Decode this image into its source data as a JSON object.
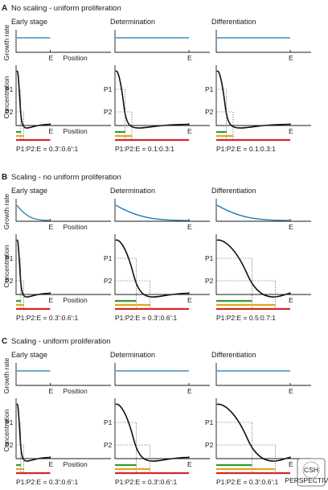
{
  "panels": [
    {
      "letter": "A",
      "title": "No scaling - uniform proliferation",
      "stages": [
        {
          "name": "Early stage",
          "growth": "flat",
          "growth_labels": [
            "E",
            "Position"
          ],
          "conc_labels": [
            "E",
            "Position"
          ],
          "ratio": "P1:P2:E = 0.3':0.6':1"
        },
        {
          "name": "Determination",
          "growth": "flat",
          "growth_labels": [
            "E"
          ],
          "conc_labels": [
            "E"
          ],
          "ratio": "P1:P2:E = 0.1:0.3:1"
        },
        {
          "name": "Differentiation",
          "growth": "flat",
          "growth_labels": [
            "E"
          ],
          "conc_labels": [
            "E"
          ],
          "ratio": "P1:P2:E = 0.1:0.3:1"
        }
      ]
    },
    {
      "letter": "B",
      "title": "Scaling - no uniform proliferation",
      "stages": [
        {
          "name": "Early stage",
          "growth": "decay",
          "growth_labels": [
            "E",
            "Position"
          ],
          "conc_labels": [
            "E",
            "Position"
          ],
          "ratio": "P1:P2:E = 0.3':0.6':1"
        },
        {
          "name": "Determination",
          "growth": "decay",
          "growth_labels": [
            "E"
          ],
          "conc_labels": [
            "E"
          ],
          "ratio": "P1:P2:E = 0.3':0.6':1"
        },
        {
          "name": "Differentiation",
          "growth": "decay",
          "growth_labels": [
            "E"
          ],
          "conc_labels": [
            "E"
          ],
          "ratio": "P1:P2:E = 0.5:0.7:1"
        }
      ]
    },
    {
      "letter": "C",
      "title": "Scaling - uniform proliferation",
      "stages": [
        {
          "name": "Early stage",
          "growth": "flat",
          "growth_labels": [
            "E",
            "Position"
          ],
          "conc_labels": [
            "E",
            "Position"
          ],
          "ratio": "P1:P2:E = 0.3':0.6':1"
        },
        {
          "name": "Determination",
          "growth": "flat",
          "growth_labels": [
            "E"
          ],
          "conc_labels": [
            "E"
          ],
          "ratio": "P1:P2:E = 0.3':0.6':1"
        },
        {
          "name": "Differentiation",
          "growth": "flat",
          "growth_labels": [
            "E"
          ],
          "conc_labels": [
            "E"
          ],
          "ratio": "P1:P2:E = 0.3':0.6':1"
        }
      ]
    }
  ],
  "labels": {
    "growth_rate": "Growth rate",
    "concentration": "Concentration",
    "p1": "P1",
    "p2": "P2"
  },
  "colors": {
    "growth_line": "#1f77b4",
    "bar_p1": "#2ca02c",
    "bar_p2": "#e3a51c",
    "bar_e": "#d62728"
  },
  "logo": {
    "text": "CSH",
    "subtext": "PERSPECTIVES"
  }
}
